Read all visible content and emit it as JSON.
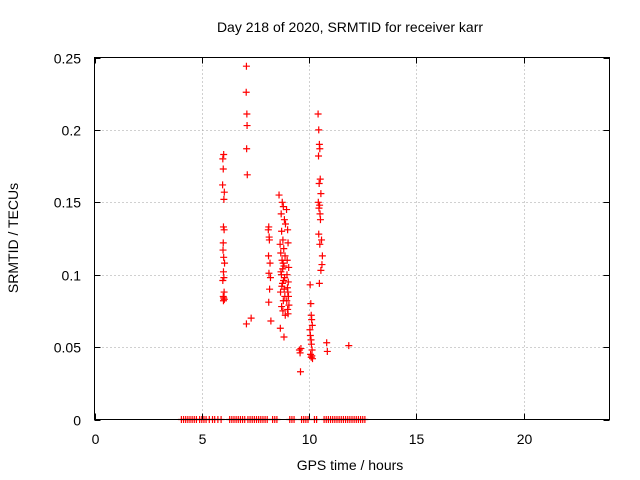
{
  "chart_data": {
    "type": "scatter",
    "title": "Day 218 of 2020, SRMTID for receiver karr",
    "xlabel": "GPS time / hours",
    "ylabel": "SRMTID / TECUs",
    "xlim": [
      0,
      24
    ],
    "ylim": [
      0,
      0.25
    ],
    "x_ticks": [
      0,
      5,
      10,
      15,
      20
    ],
    "x_tick_labels": [
      "0",
      "5",
      "10",
      "15",
      "20"
    ],
    "y_ticks": [
      0,
      0.05,
      0.1,
      0.15,
      0.2,
      0.25
    ],
    "y_tick_labels": [
      "0",
      "0.05",
      "0.1",
      "0.15",
      "0.2",
      "0.25"
    ],
    "grid": true,
    "marker": "+",
    "color": "#ff0000",
    "series": [
      {
        "name": "SRMTID",
        "x": [
          5.98,
          6.02,
          6.0,
          5.97,
          6.05,
          6.03,
          6.01,
          6.04,
          6.0,
          5.99,
          6.02,
          6.06,
          6.01,
          6.03,
          5.98,
          6.04,
          6.0,
          6.02,
          6.05,
          6.01,
          7.08,
          7.07,
          7.1,
          7.11,
          7.09,
          7.12,
          7.08,
          7.3,
          8.12,
          8.1,
          8.14,
          8.15,
          8.11,
          8.18,
          8.13,
          8.2,
          8.16,
          8.12,
          8.22,
          8.6,
          8.75,
          8.8,
          8.7,
          8.85,
          8.9,
          8.72,
          8.78,
          8.65,
          8.82,
          8.68,
          8.88,
          8.74,
          8.79,
          8.83,
          8.77,
          8.69,
          8.71,
          8.86,
          8.81,
          8.76,
          8.73,
          8.84,
          8.67,
          8.87,
          8.8,
          8.72,
          8.78,
          8.66,
          8.83,
          8.89,
          8.95,
          9.0,
          9.02,
          8.98,
          9.05,
          8.97,
          9.03,
          8.99,
          9.01,
          9.04,
          8.96,
          9.06,
          9.0,
          9.02,
          9.55,
          9.58,
          9.62,
          9.6,
          10.05,
          10.08,
          10.1,
          10.12,
          10.15,
          10.06,
          10.09,
          10.11,
          10.14,
          10.07,
          10.13,
          10.1,
          10.16,
          10.04,
          10.42,
          10.45,
          10.48,
          10.5,
          10.44,
          10.52,
          10.47,
          10.55,
          10.43,
          10.49,
          10.46,
          10.51,
          10.53,
          10.45,
          10.58,
          10.5,
          10.62,
          10.6,
          10.55,
          10.48,
          10.82,
          10.85,
          11.85,
          4.05,
          4.15,
          4.25,
          4.35,
          4.45,
          4.55,
          4.65,
          4.75,
          4.9,
          5.0,
          5.1,
          5.2,
          5.35,
          5.5,
          5.6,
          5.75,
          5.9,
          6.3,
          6.4,
          6.5,
          6.6,
          6.7,
          6.8,
          6.9,
          7.0,
          7.15,
          7.25,
          7.35,
          7.45,
          7.55,
          7.65,
          7.75,
          7.85,
          7.95,
          8.05,
          8.3,
          8.4,
          8.5,
          9.1,
          9.2,
          9.3,
          9.65,
          9.75,
          9.85,
          9.95,
          10.25,
          10.35,
          10.7,
          10.8,
          10.9,
          11.0,
          11.1,
          11.2,
          11.3,
          11.4,
          11.5,
          11.6,
          11.7,
          11.8,
          11.9,
          12.0,
          12.1,
          12.2,
          12.3,
          12.4,
          12.5,
          12.6
        ],
        "y": [
          0.18,
          0.183,
          0.173,
          0.162,
          0.157,
          0.152,
          0.133,
          0.131,
          0.122,
          0.117,
          0.112,
          0.108,
          0.102,
          0.098,
          0.096,
          0.088,
          0.085,
          0.084,
          0.083,
          0.082,
          0.244,
          0.226,
          0.211,
          0.203,
          0.187,
          0.169,
          0.066,
          0.07,
          0.133,
          0.131,
          0.126,
          0.124,
          0.113,
          0.108,
          0.101,
          0.098,
          0.09,
          0.081,
          0.068,
          0.155,
          0.15,
          0.147,
          0.142,
          0.138,
          0.135,
          0.13,
          0.124,
          0.121,
          0.118,
          0.115,
          0.113,
          0.11,
          0.108,
          0.106,
          0.104,
          0.102,
          0.1,
          0.098,
          0.096,
          0.094,
          0.092,
          0.09,
          0.088,
          0.085,
          0.082,
          0.078,
          0.075,
          0.063,
          0.057,
          0.072,
          0.145,
          0.131,
          0.122,
          0.11,
          0.105,
          0.1,
          0.095,
          0.091,
          0.088,
          0.085,
          0.082,
          0.079,
          0.076,
          0.073,
          0.048,
          0.046,
          0.049,
          0.033,
          0.093,
          0.08,
          0.072,
          0.069,
          0.065,
          0.058,
          0.055,
          0.052,
          0.048,
          0.045,
          0.044,
          0.043,
          0.042,
          0.062,
          0.211,
          0.2,
          0.19,
          0.187,
          0.182,
          0.166,
          0.163,
          0.156,
          0.15,
          0.148,
          0.146,
          0.142,
          0.138,
          0.128,
          0.124,
          0.121,
          0.113,
          0.107,
          0.103,
          0.094,
          0.053,
          0.047,
          0.051,
          0,
          0,
          0,
          0,
          0,
          0,
          0,
          0,
          0,
          0,
          0,
          0,
          0,
          0,
          0,
          0,
          0,
          0,
          0,
          0,
          0,
          0,
          0,
          0,
          0,
          0,
          0,
          0,
          0,
          0,
          0,
          0,
          0,
          0,
          0,
          0,
          0,
          0,
          0,
          0,
          0,
          0,
          0,
          0,
          0,
          0,
          0,
          0,
          0,
          0,
          0,
          0,
          0,
          0,
          0,
          0,
          0,
          0,
          0,
          0,
          0,
          0,
          0,
          0,
          0,
          0,
          0
        ]
      }
    ]
  }
}
